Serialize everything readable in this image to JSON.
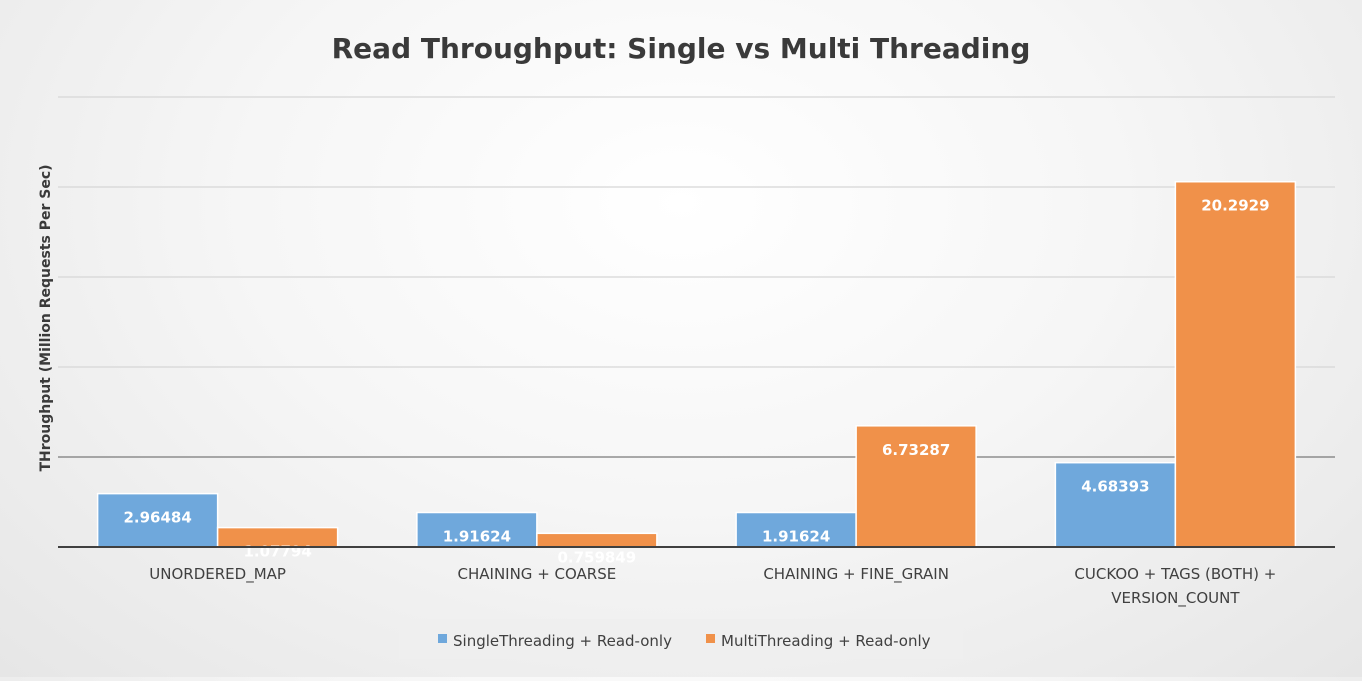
{
  "chart_data": {
    "type": "bar",
    "title": "Read Throughput: Single vs Multi Threading",
    "xlabel": "",
    "ylabel": "THroughput (Million Requests Per Sec)",
    "ylim": [
      0,
      25
    ],
    "y_gridlines": [
      5,
      10,
      15,
      20,
      25
    ],
    "grid": true,
    "y_tick_labels_shown": false,
    "legend_position": "bottom",
    "categories": [
      [
        "UNORDERED_MAP"
      ],
      [
        "CHAINING + COARSE"
      ],
      [
        "CHAINING + FINE_GRAIN"
      ],
      [
        "CUCKOO + TAGS (BOTH) +",
        "VERSION_COUNT"
      ]
    ],
    "series": [
      {
        "name": "SingleThreading + Read-only",
        "color": "#6fa8dc",
        "values": [
          2.96484,
          1.91624,
          1.91624,
          4.68393
        ],
        "labels": [
          "2.96484",
          "1.91624",
          "1.91624",
          "4.68393"
        ]
      },
      {
        "name": "MultiThreading + Read-only",
        "color": "#f0914a",
        "values": [
          1.07794,
          0.759849,
          6.73287,
          20.2929
        ],
        "labels": [
          "1.07794",
          "0.759849",
          "6.73287",
          "20.2929"
        ]
      }
    ]
  }
}
